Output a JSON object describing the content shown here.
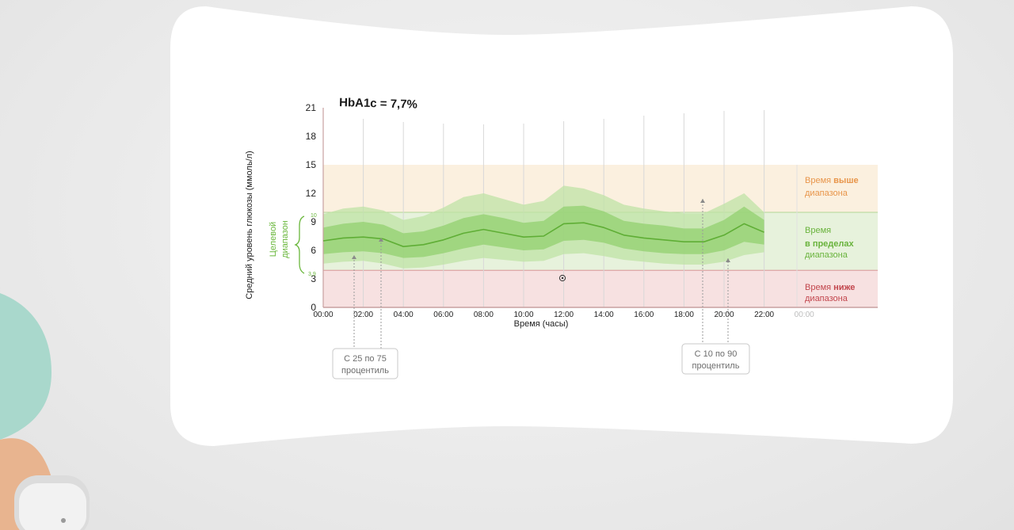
{
  "chart_data": {
    "type": "area",
    "title": "HbA1c = 7,7%",
    "ylabel": "Средний уровень глюкозы (ммоль/л)",
    "xlabel": "Время (часы)",
    "ylim": [
      0,
      21
    ],
    "yticks": [
      "0",
      "3",
      "6",
      "9",
      "12",
      "15",
      "18",
      "21"
    ],
    "xticks": [
      "00:00",
      "02:00",
      "04:00",
      "06:00",
      "08:00",
      "10:00",
      "12:00",
      "14:00",
      "16:00",
      "18:00",
      "20:00",
      "22:00",
      "00:00"
    ],
    "target_range": {
      "low": 3.9,
      "high": 10,
      "low_label": "3,9",
      "high_label": "10",
      "label_line1": "Целевой",
      "label_line2": "диапазон"
    },
    "zones": [
      {
        "line1": "Время ",
        "bold": "выше",
        "line2": "диапазона",
        "color": "#e8954a"
      },
      {
        "line1": "Время",
        "bold": "в пределах",
        "line2": "диапазона",
        "color": "#69b33c"
      },
      {
        "line1": "Время ",
        "bold": "ниже",
        "line2": "диапазона",
        "color": "#c2464d"
      }
    ],
    "hours": [
      0,
      1,
      2,
      3,
      4,
      5,
      6,
      7,
      8,
      9,
      10,
      11,
      12,
      13,
      14,
      15,
      16,
      17,
      18,
      19,
      20,
      21,
      22
    ],
    "series": [
      {
        "values": [
          7.0,
          7.3,
          7.4,
          7.2,
          6.4,
          6.6,
          7.1,
          7.8,
          8.2,
          7.8,
          7.4,
          7.5,
          8.8,
          8.9,
          8.4,
          7.6,
          7.3,
          7.1,
          6.9,
          6.9,
          7.6,
          8.8,
          7.9
        ]
      },
      {
        "name": "С 25 по 75 процентиль",
        "low": [
          5.6,
          5.8,
          5.9,
          5.7,
          5.2,
          5.3,
          5.7,
          6.2,
          6.6,
          6.3,
          6.0,
          6.1,
          7.0,
          7.1,
          6.8,
          6.2,
          5.9,
          5.7,
          5.6,
          5.6,
          6.0,
          6.9,
          6.6
        ],
        "high": [
          8.4,
          8.8,
          9.0,
          8.7,
          7.8,
          8.0,
          8.6,
          9.4,
          9.8,
          9.4,
          8.9,
          9.1,
          10.6,
          10.7,
          10.1,
          9.1,
          8.8,
          8.6,
          8.3,
          8.3,
          9.2,
          10.6,
          9.2
        ]
      },
      {
        "name": "С 10 по 90 процентиль",
        "low": [
          4.6,
          4.8,
          4.9,
          4.6,
          4.1,
          4.2,
          4.5,
          4.9,
          5.2,
          5.0,
          4.8,
          4.9,
          5.6,
          5.7,
          5.4,
          5.0,
          4.8,
          4.6,
          4.5,
          4.5,
          4.8,
          5.5,
          5.8
        ],
        "high": [
          9.8,
          10.4,
          10.6,
          10.2,
          9.2,
          9.6,
          10.5,
          11.6,
          12.0,
          11.4,
          10.8,
          11.2,
          12.8,
          12.5,
          11.8,
          10.8,
          10.4,
          10.1,
          9.9,
          9.9,
          10.9,
          12.0,
          10.0
        ]
      }
    ],
    "annotations": [
      {
        "line1": "С 25 по 75",
        "line2": "процентиль"
      },
      {
        "line1": "С 10 по 90",
        "line2": "процентиль"
      }
    ],
    "grid": "vertical",
    "colors": {
      "line": "#5fae35",
      "band_inner": "#8fcf6b",
      "band_outer": "#bfe3a6",
      "above_zone": "#fbf0df",
      "in_zone": "#e7f2dc",
      "below_zone": "#f7e1e1",
      "axis": "#c9a0a0"
    }
  }
}
